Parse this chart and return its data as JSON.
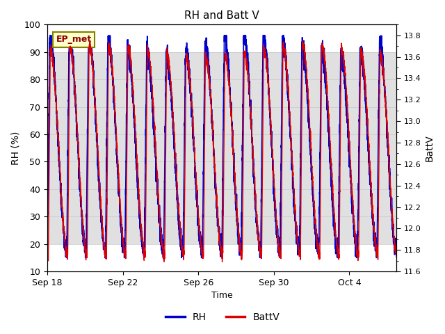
{
  "title": "RH and Batt V",
  "xlabel": "Time",
  "ylabel_left": "RH (%)",
  "ylabel_right": "BattV",
  "ylim_left": [
    10,
    100
  ],
  "ylim_right": [
    11.6,
    13.8
  ],
  "xticklabels": [
    "Sep 18",
    "Sep 22",
    "Sep 26",
    "Sep 30",
    "Oct 4"
  ],
  "xtick_positions": [
    0,
    4,
    8,
    12,
    16
  ],
  "shade_ymin": 20,
  "shade_ymax": 90,
  "line_color_rh": "#0000cc",
  "line_color_batt": "#dd0000",
  "annotation_text": "EP_met",
  "legend_labels": [
    "RH",
    "BattV"
  ],
  "background_color": "#ffffff",
  "shade_color": "#e0e0e0",
  "grid_color": "#c8c8c8",
  "num_cycles": 18,
  "total_days": 18.5,
  "rh_max": 93,
  "rh_min": 18,
  "batt_max": 13.65,
  "batt_min": 11.75
}
